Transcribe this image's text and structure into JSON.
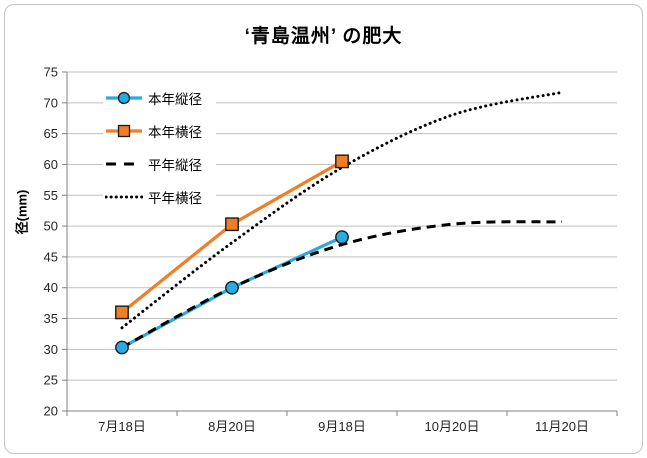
{
  "title": "‘青島温州’ の肥大",
  "colors": {
    "background": "#FFFFFF",
    "frame_border": "#C4C4C4",
    "grid": "#BFBFBF",
    "axis": "#808080",
    "tick_text": "#262626",
    "series_blue": "#29ABE2",
    "series_orange": "#F07E26",
    "series_black": "#000000",
    "marker_border": "#1A1A1A"
  },
  "chart_data": {
    "type": "line",
    "title": "‘青島温州’ の肥大",
    "categories": [
      "7月18日",
      "8月20日",
      "9月18日",
      "10月20日",
      "11月20日"
    ],
    "series": [
      {
        "key": "this-year-vertical",
        "name": "本年縦径",
        "color": "#29ABE2",
        "marker": "circle",
        "style": "solid",
        "smooth": false,
        "values": [
          30.3,
          40,
          48.2
        ]
      },
      {
        "key": "this-year-horizontal",
        "name": "本年横径",
        "color": "#F07E26",
        "marker": "square",
        "style": "solid",
        "smooth": false,
        "values": [
          36,
          50.3,
          60.5
        ]
      },
      {
        "key": "normal-year-vertical",
        "name": "平年縦径",
        "color": "#000000",
        "marker": "none",
        "style": "dashed",
        "smooth": true,
        "values": [
          30.3,
          40,
          47,
          50.3,
          50.7
        ]
      },
      {
        "key": "normal-year-horizontal",
        "name": "平年横径",
        "color": "#000000",
        "marker": "none",
        "style": "dotted",
        "smooth": true,
        "values": [
          33.5,
          47.3,
          59.5,
          68,
          71.7
        ]
      }
    ],
    "xlabel": "",
    "ylabel": "径(mm)",
    "ylim": [
      20,
      75
    ],
    "ytick_step": 5,
    "grid": "horizontal",
    "legend_position": "inside-top-left",
    "legend": [
      "本年縦径",
      "本年横径",
      "平年縦径",
      "平年横径"
    ]
  }
}
